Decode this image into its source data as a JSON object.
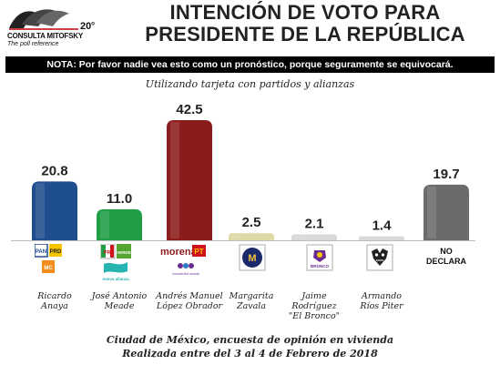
{
  "header": {
    "logo_name": "CONSULTA MITOFSKY",
    "logo_tagline": "The poll reference",
    "logo_anniv": "20",
    "logo_anniv_suffix": "o",
    "title_line1": "INTENCIÓN DE VOTO PARA",
    "title_line2": "PRESIDENTE DE LA REPÚBLICA"
  },
  "note": "NOTA: Por favor nadie vea esto como un pronóstico, porque seguramente se equivocará.",
  "subtitle": "Utilizando tarjeta con partidos y alianzas",
  "chart_data": {
    "type": "bar",
    "categories": [
      "Ricardo Anaya",
      "José Antonio Meade",
      "Andrés Manuel López Obrador",
      "Margarita Zavala",
      "Jaime Rodríguez \"El Bronco\"",
      "Armando Ríos Piter",
      "NO DECLARA"
    ],
    "category_lines": [
      [
        "Ricardo",
        "Anaya"
      ],
      [
        "José Antonio",
        "Meade"
      ],
      [
        "Andrés Manuel",
        "López Obrador"
      ],
      [
        "Margarita",
        "Zavala"
      ],
      [
        "Jaime",
        "Rodríguez",
        "\"El Bronco\""
      ],
      [
        "Armando",
        "Ríos Piter"
      ],
      [
        "NO",
        "DECLARA"
      ]
    ],
    "values": [
      20.8,
      11.0,
      42.5,
      2.5,
      2.1,
      1.4,
      19.7
    ],
    "value_labels": [
      "20.8",
      "11.0",
      "42.5",
      "2.5",
      "2.1",
      "1.4",
      "19.7"
    ],
    "colors": [
      "#1f4e8f",
      "#1f9e45",
      "#8b1c1c",
      "#dfd9a8",
      "#d9d9d9",
      "#d9d9d9",
      "#6b6b6b"
    ],
    "ylim": [
      0,
      42.5
    ],
    "grid": false,
    "legend": "none"
  },
  "party_logos": {
    "anaya": [
      "PAN",
      "PRD",
      "MC"
    ],
    "meade": [
      "PRI",
      "VERDE",
      "nueva alianza"
    ],
    "amlo": [
      "morena",
      "PT",
      "encuentro social"
    ],
    "zavala": [
      "M"
    ],
    "bronco": [
      "BRONCO"
    ],
    "rios": []
  },
  "footer": {
    "line1": "Ciudad de México, encuesta de opinión en vivienda",
    "line2": "Realizada entre del 3 al 4 de Febrero de 2018"
  }
}
